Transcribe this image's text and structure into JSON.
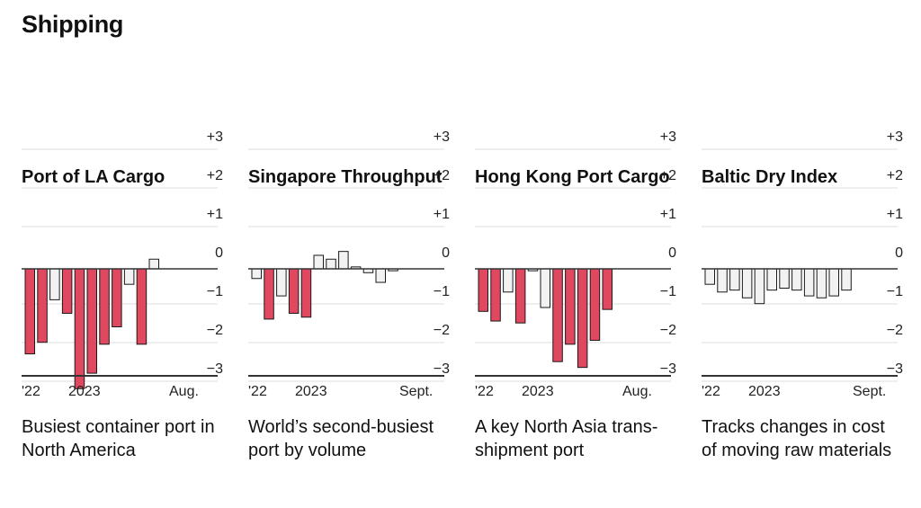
{
  "page_title": "Shipping",
  "colors": {
    "negative_highlight": "#e0485f",
    "neutral_bar": "#f2f2f2",
    "bar_stroke": "#1a1a1a",
    "gridline": "#dddddd",
    "baseline": "#333333"
  },
  "y_tick_labels": [
    "+3",
    "+2",
    "+1",
    "0",
    "−1",
    "−2",
    "−3"
  ],
  "chart_data": [
    {
      "type": "bar",
      "title": "Port of LA Cargo",
      "description": "Busiest container port in North America",
      "x_labels": [
        "'22",
        "2023",
        "Aug."
      ],
      "ylim": [
        -3.1,
        3
      ],
      "values": [
        -2.2,
        -1.9,
        -0.8,
        -1.15,
        -3.1,
        -2.7,
        -1.95,
        -1.5,
        -0.4,
        -1.95,
        0.25
      ],
      "highlight": [
        true,
        true,
        false,
        true,
        true,
        true,
        true,
        true,
        false,
        true,
        false
      ]
    },
    {
      "type": "bar",
      "title": "Singapore Throughput",
      "description": "World’s second-busiest port by volume",
      "x_labels": [
        "'22",
        "2023",
        "Sept."
      ],
      "ylim": [
        -3.1,
        3
      ],
      "values": [
        -0.25,
        -1.3,
        -0.7,
        -1.15,
        -1.25,
        0.35,
        0.25,
        0.45,
        0.05,
        -0.1,
        -0.35,
        -0.05
      ],
      "highlight": [
        false,
        true,
        false,
        true,
        true,
        false,
        false,
        false,
        false,
        false,
        false,
        false
      ]
    },
    {
      "type": "bar",
      "title": "Hong Kong Port Cargo",
      "description": "A key North Asia trans-shipment port",
      "x_labels": [
        "'22",
        "2023",
        "Aug."
      ],
      "ylim": [
        -3.1,
        3
      ],
      "values": [
        -1.1,
        -1.35,
        -0.6,
        -1.4,
        -0.05,
        -1.0,
        -2.4,
        -1.95,
        -2.55,
        -1.85,
        -1.05
      ],
      "highlight": [
        true,
        true,
        false,
        true,
        false,
        false,
        true,
        true,
        true,
        true,
        true
      ]
    },
    {
      "type": "bar",
      "title": "Baltic Dry Index",
      "description": "Tracks changes in cost of moving raw materials",
      "x_labels": [
        "'22",
        "2023",
        "Sept."
      ],
      "ylim": [
        -3.1,
        3
      ],
      "values": [
        -0.4,
        -0.6,
        -0.55,
        -0.75,
        -0.9,
        -0.55,
        -0.5,
        -0.55,
        -0.7,
        -0.75,
        -0.7,
        -0.55
      ],
      "highlight": [
        false,
        false,
        false,
        false,
        false,
        false,
        false,
        false,
        false,
        false,
        false,
        false
      ]
    }
  ]
}
